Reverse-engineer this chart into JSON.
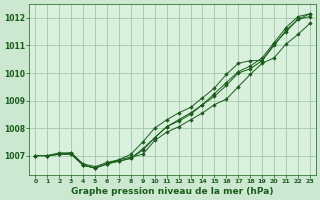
{
  "bg_color": "#cce8d0",
  "plot_bg_color": "#d8f0dc",
  "grid_color": "#a0c8a8",
  "line_color": "#1a5c1a",
  "marker_color": "#1a5c1a",
  "xlabel": "Graphe pression niveau de la mer (hPa)",
  "xlabel_fontsize": 6.5,
  "xlim": [
    -0.5,
    23.5
  ],
  "ylim": [
    1006.3,
    1012.5
  ],
  "yticks": [
    1007,
    1008,
    1009,
    1010,
    1011,
    1012
  ],
  "xticks": [
    0,
    1,
    2,
    3,
    4,
    5,
    6,
    7,
    8,
    9,
    10,
    11,
    12,
    13,
    14,
    15,
    16,
    17,
    18,
    19,
    20,
    21,
    22,
    23
  ],
  "xtick_labels": [
    "0",
    "1",
    "2",
    "3",
    "4",
    "5",
    "6",
    "7",
    "8",
    "9",
    "10",
    "11",
    "12",
    "13",
    "14",
    "15",
    "16",
    "17",
    "18",
    "19",
    "20",
    "21",
    "22",
    "23"
  ],
  "series": [
    [
      1007.0,
      1007.0,
      1007.1,
      1007.1,
      1006.7,
      1006.6,
      1006.75,
      1006.85,
      1006.95,
      1007.05,
      1007.55,
      1007.85,
      1008.05,
      1008.3,
      1008.55,
      1008.85,
      1009.05,
      1009.5,
      1009.95,
      1010.35,
      1010.55,
      1011.05,
      1011.4,
      1011.8
    ],
    [
      1007.0,
      1007.0,
      1007.05,
      1007.05,
      1006.65,
      1006.55,
      1006.7,
      1006.8,
      1006.9,
      1007.2,
      1007.65,
      1008.05,
      1008.25,
      1008.5,
      1008.85,
      1009.15,
      1009.55,
      1010.0,
      1010.15,
      1010.45,
      1011.0,
      1011.55,
      1011.95,
      1012.05
    ],
    [
      1007.0,
      1007.0,
      1007.05,
      1007.05,
      1006.65,
      1006.55,
      1006.7,
      1006.8,
      1006.9,
      1007.25,
      1007.65,
      1008.05,
      1008.3,
      1008.55,
      1008.85,
      1009.25,
      1009.65,
      1010.05,
      1010.25,
      1010.55,
      1011.1,
      1011.65,
      1012.05,
      1012.15
    ],
    [
      1007.0,
      1007.0,
      1007.05,
      1007.1,
      1006.65,
      1006.55,
      1006.7,
      1006.85,
      1007.05,
      1007.5,
      1008.0,
      1008.3,
      1008.55,
      1008.75,
      1009.1,
      1009.45,
      1009.95,
      1010.35,
      1010.45,
      1010.45,
      1011.05,
      1011.5,
      1011.95,
      1012.15
    ]
  ]
}
